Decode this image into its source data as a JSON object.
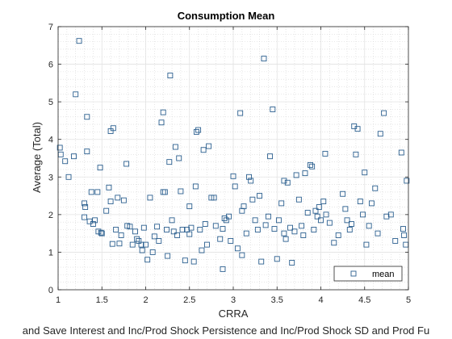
{
  "chart_data": {
    "type": "scatter",
    "title": "Consumption Mean",
    "xlabel": "CRRA",
    "ylabel": "Average (Total)",
    "caption": "and Save Interest and Inc/Prod Shock Persistence and Inc/Prod Shock SD and Prod Fu",
    "xlim": [
      1,
      5
    ],
    "ylim": [
      0,
      7
    ],
    "xticks": [
      1,
      1.5,
      2,
      2.5,
      3,
      3.5,
      4,
      4.5,
      5
    ],
    "yticks": [
      0,
      1,
      2,
      3,
      4,
      5,
      6,
      7
    ],
    "xtick_labels": [
      "1",
      "1.5",
      "2",
      "2.5",
      "3",
      "3.5",
      "4",
      "4.5",
      "5"
    ],
    "ytick_labels": [
      "0",
      "1",
      "2",
      "3",
      "4",
      "5",
      "6",
      "7"
    ],
    "grid": true,
    "minor_grid": true,
    "legend": {
      "entries": [
        "mean"
      ],
      "placement": "bottom-right"
    },
    "marker_color": "#2b5f8f",
    "series": [
      {
        "name": "mean",
        "points": [
          [
            1.02,
            3.78
          ],
          [
            1.03,
            3.6
          ],
          [
            1.08,
            3.42
          ],
          [
            1.12,
            3.0
          ],
          [
            1.18,
            3.55
          ],
          [
            1.2,
            5.2
          ],
          [
            1.24,
            6.62
          ],
          [
            1.3,
            2.3
          ],
          [
            1.31,
            2.2
          ],
          [
            1.3,
            1.93
          ],
          [
            1.33,
            3.68
          ],
          [
            1.33,
            4.6
          ],
          [
            1.36,
            1.82
          ],
          [
            1.38,
            2.6
          ],
          [
            1.4,
            1.75
          ],
          [
            1.42,
            1.85
          ],
          [
            1.45,
            2.6
          ],
          [
            1.46,
            1.55
          ],
          [
            1.48,
            3.25
          ],
          [
            1.49,
            1.52
          ],
          [
            1.5,
            1.5
          ],
          [
            1.55,
            2.1
          ],
          [
            1.58,
            2.72
          ],
          [
            1.6,
            4.22
          ],
          [
            1.62,
            1.22
          ],
          [
            1.63,
            4.3
          ],
          [
            1.66,
            1.6
          ],
          [
            1.68,
            2.45
          ],
          [
            1.7,
            1.23
          ],
          [
            1.72,
            1.45
          ],
          [
            1.75,
            2.38
          ],
          [
            1.78,
            3.35
          ],
          [
            1.79,
            1.7
          ],
          [
            1.82,
            1.68
          ],
          [
            1.85,
            1.2
          ],
          [
            1.88,
            1.55
          ],
          [
            1.9,
            1.35
          ],
          [
            1.92,
            1.3
          ],
          [
            1.95,
            1.2
          ],
          [
            1.96,
            1.05
          ],
          [
            1.98,
            1.65
          ],
          [
            2.0,
            1.2
          ],
          [
            2.05,
            2.45
          ],
          [
            2.08,
            1.0
          ],
          [
            2.1,
            1.42
          ],
          [
            2.13,
            1.68
          ],
          [
            2.15,
            1.3
          ],
          [
            2.18,
            4.45
          ],
          [
            2.2,
            4.72
          ],
          [
            2.22,
            2.6
          ],
          [
            2.24,
            1.6
          ],
          [
            2.25,
            0.9
          ],
          [
            2.27,
            3.4
          ],
          [
            2.28,
            5.7
          ],
          [
            2.3,
            1.85
          ],
          [
            2.32,
            1.55
          ],
          [
            2.34,
            3.8
          ],
          [
            2.36,
            1.45
          ],
          [
            2.38,
            3.5
          ],
          [
            2.4,
            2.62
          ],
          [
            2.42,
            1.6
          ],
          [
            2.45,
            0.78
          ],
          [
            2.47,
            1.6
          ],
          [
            2.5,
            2.22
          ],
          [
            2.52,
            1.65
          ],
          [
            2.55,
            0.75
          ],
          [
            2.57,
            2.75
          ],
          [
            2.58,
            4.2
          ],
          [
            2.6,
            4.25
          ],
          [
            2.62,
            1.6
          ],
          [
            2.64,
            1.05
          ],
          [
            2.66,
            3.72
          ],
          [
            2.68,
            1.75
          ],
          [
            2.7,
            1.2
          ],
          [
            2.72,
            3.82
          ],
          [
            2.75,
            2.45
          ],
          [
            2.78,
            2.45
          ],
          [
            2.8,
            1.7
          ],
          [
            2.85,
            1.35
          ],
          [
            2.88,
            1.62
          ],
          [
            2.9,
            1.9
          ],
          [
            2.92,
            1.85
          ],
          [
            2.95,
            1.95
          ],
          [
            2.97,
            1.3
          ],
          [
            3.0,
            3.02
          ],
          [
            3.02,
            2.75
          ],
          [
            3.05,
            1.1
          ],
          [
            3.08,
            4.7
          ],
          [
            3.1,
            0.92
          ],
          [
            3.12,
            2.22
          ],
          [
            3.15,
            1.5
          ],
          [
            3.18,
            3.0
          ],
          [
            3.2,
            2.9
          ],
          [
            3.22,
            2.4
          ],
          [
            3.25,
            1.85
          ],
          [
            3.28,
            1.6
          ],
          [
            3.3,
            2.5
          ],
          [
            3.32,
            0.75
          ],
          [
            3.35,
            6.15
          ],
          [
            3.37,
            1.72
          ],
          [
            3.4,
            1.95
          ],
          [
            3.42,
            3.55
          ],
          [
            3.45,
            4.8
          ],
          [
            3.47,
            1.62
          ],
          [
            3.5,
            0.82
          ],
          [
            3.52,
            1.85
          ],
          [
            3.55,
            2.3
          ],
          [
            3.58,
            1.5
          ],
          [
            3.6,
            1.35
          ],
          [
            3.62,
            2.85
          ],
          [
            3.65,
            1.65
          ],
          [
            3.67,
            0.72
          ],
          [
            3.7,
            1.55
          ],
          [
            3.72,
            3.05
          ],
          [
            3.75,
            2.4
          ],
          [
            3.78,
            1.7
          ],
          [
            3.8,
            1.45
          ],
          [
            3.82,
            3.1
          ],
          [
            3.85,
            2.05
          ],
          [
            3.88,
            3.32
          ],
          [
            3.9,
            3.28
          ],
          [
            3.92,
            1.6
          ],
          [
            3.94,
            2.1
          ],
          [
            3.96,
            1.95
          ],
          [
            3.98,
            2.2
          ],
          [
            4.0,
            1.85
          ],
          [
            4.03,
            2.35
          ],
          [
            4.06,
            2.0
          ],
          [
            4.1,
            1.78
          ],
          [
            4.15,
            1.25
          ],
          [
            4.2,
            1.45
          ],
          [
            4.25,
            2.55
          ],
          [
            4.28,
            2.15
          ],
          [
            4.3,
            1.85
          ],
          [
            4.33,
            1.6
          ],
          [
            4.35,
            1.75
          ],
          [
            4.38,
            4.35
          ],
          [
            4.42,
            4.28
          ],
          [
            4.45,
            2.35
          ],
          [
            4.48,
            2.0
          ],
          [
            4.5,
            3.12
          ],
          [
            4.52,
            1.2
          ],
          [
            4.55,
            1.7
          ],
          [
            4.58,
            2.3
          ],
          [
            4.62,
            2.7
          ],
          [
            4.65,
            1.5
          ],
          [
            4.68,
            4.15
          ],
          [
            4.72,
            4.7
          ],
          [
            4.75,
            1.95
          ],
          [
            4.8,
            2.0
          ],
          [
            4.85,
            1.3
          ],
          [
            4.92,
            3.65
          ],
          [
            4.94,
            1.62
          ],
          [
            4.95,
            1.45
          ],
          [
            4.97,
            1.2
          ],
          [
            4.98,
            2.9
          ],
          [
            2.02,
            0.8
          ],
          [
            2.5,
            1.48
          ],
          [
            2.88,
            0.55
          ],
          [
            3.58,
            2.9
          ],
          [
            4.05,
            3.62
          ],
          [
            1.6,
            2.35
          ],
          [
            2.2,
            2.6
          ],
          [
            3.1,
            2.1
          ],
          [
            4.4,
            3.6
          ]
        ]
      }
    ]
  }
}
